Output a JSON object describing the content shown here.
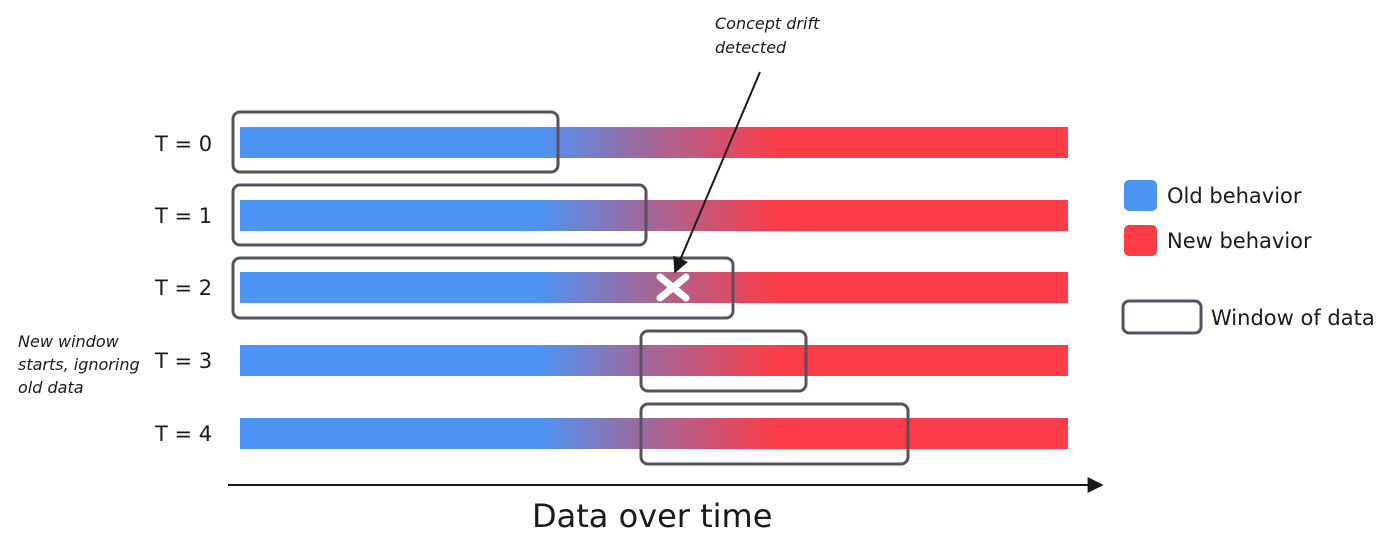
{
  "colors": {
    "old_behavior": "#4d94f5",
    "new_behavior": "#fc3d48",
    "window_border": "#5a5060",
    "text": "#1a1a1a"
  },
  "rows": [
    {
      "label": "T = 0"
    },
    {
      "label": "T = 1"
    },
    {
      "label": "T = 2"
    },
    {
      "label": "T = 3"
    },
    {
      "label": "T = 4"
    }
  ],
  "legend": {
    "old": "Old behavior",
    "new": "New behavior",
    "window": "Window of data"
  },
  "annotations": {
    "drift_line1": "Concept drift",
    "drift_line2": "detected",
    "new_window_line1": "New window",
    "new_window_line2": "starts, ignoring",
    "new_window_line3": "old data",
    "drift_marker_icon": "x-mark-icon"
  },
  "axis": {
    "label": "Data over time"
  }
}
